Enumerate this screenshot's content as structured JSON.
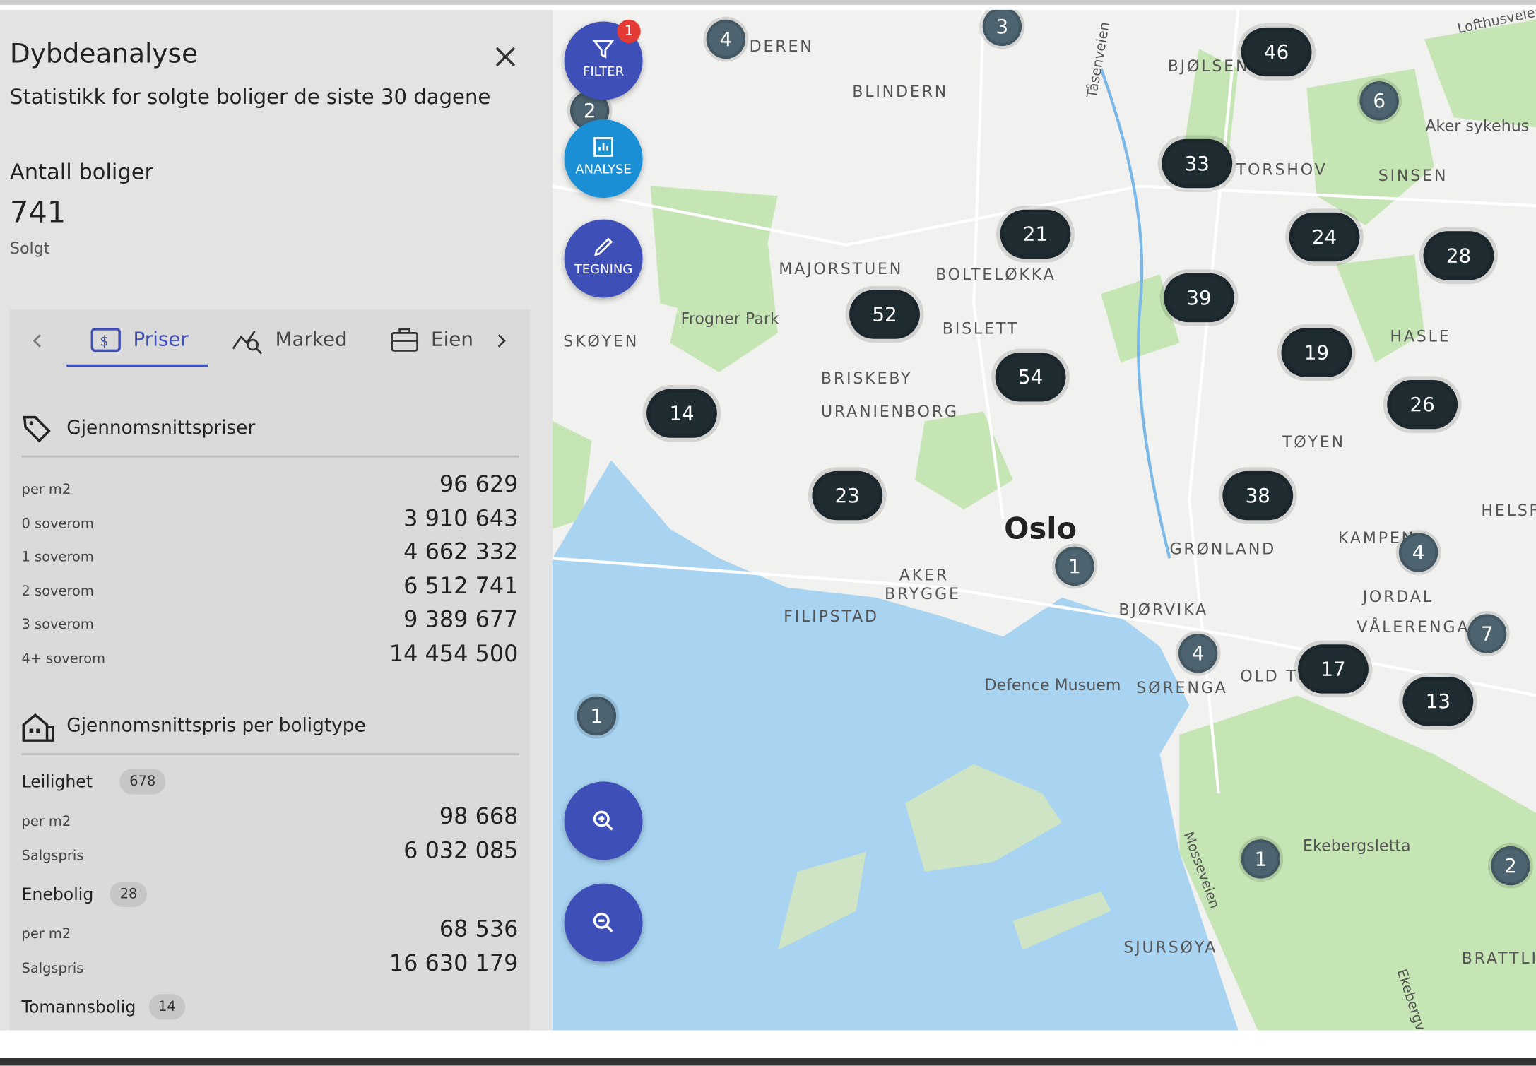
{
  "panel": {
    "title": "Dybdeanalyse",
    "subtitle": "Statistikk for solgte boliger de siste 30 dagene",
    "count_label": "Antall boliger",
    "count": "741",
    "count_caption": "Solgt",
    "tabs": [
      "Priser",
      "Marked",
      "Eien"
    ],
    "avg_section": {
      "title": "Gjennomsnittspriser",
      "rows": [
        [
          "per m2",
          "96 629"
        ],
        [
          "0 soverom",
          "3 910 643"
        ],
        [
          "1 soverom",
          "4 662 332"
        ],
        [
          "2 soverom",
          "6 512 741"
        ],
        [
          "3 soverom",
          "9 389 677"
        ],
        [
          "4+ soverom",
          "14 454 500"
        ]
      ]
    },
    "type_section": {
      "title": "Gjennomsnittspris per boligtype",
      "groups": [
        {
          "name": "Leilighet",
          "count": "678",
          "rows": [
            [
              "per m2",
              "98 668"
            ],
            [
              "Salgspris",
              "6 032 085"
            ]
          ]
        },
        {
          "name": "Enebolig",
          "count": "28",
          "rows": [
            [
              "per m2",
              "68 536"
            ],
            [
              "Salgspris",
              "16 630 179"
            ]
          ]
        },
        {
          "name": "Tomannsbolig",
          "count": "14",
          "rows": []
        }
      ]
    }
  },
  "buttons": {
    "filter": "FILTER",
    "filter_badge": "1",
    "analyse": "ANALYSE",
    "drawing": "TEGNING"
  },
  "map": {
    "places": [
      "DEREN",
      "BLINDERN",
      "BJØLSEN",
      "TORSHOV",
      "SINSEN",
      "Aker sykehus",
      "Lofthusveien",
      "Tåsenveien",
      "MAJORSTUEN",
      "BOLTELØKKA",
      "Frogner Park",
      "BISLETT",
      "SKØYEN",
      "HASLE",
      "BRISKEBY",
      "URANIENBORG",
      "TØYEN",
      "HELSF",
      "Oslo",
      "GRØNLAND",
      "KAMPEN",
      "AKER",
      "BRYGGE",
      "JORDAL",
      "FILIPSTAD",
      "BJØRVIKA",
      "VÅLERENGA",
      "Defence Musuem",
      "SØRENGA",
      "OLD TO",
      "Ekebergsletta",
      "Mosseveien",
      "SJURSØYA",
      "BRATTLI",
      "Ekebergve"
    ],
    "clusters": [
      "4",
      "3",
      "46",
      "6",
      "2",
      "33",
      "21",
      "24",
      "28",
      "39",
      "52",
      "19",
      "54",
      "26",
      "14",
      "23",
      "38",
      "4",
      "1",
      "7",
      "4",
      "17",
      "13",
      "1",
      "1",
      "2"
    ]
  }
}
